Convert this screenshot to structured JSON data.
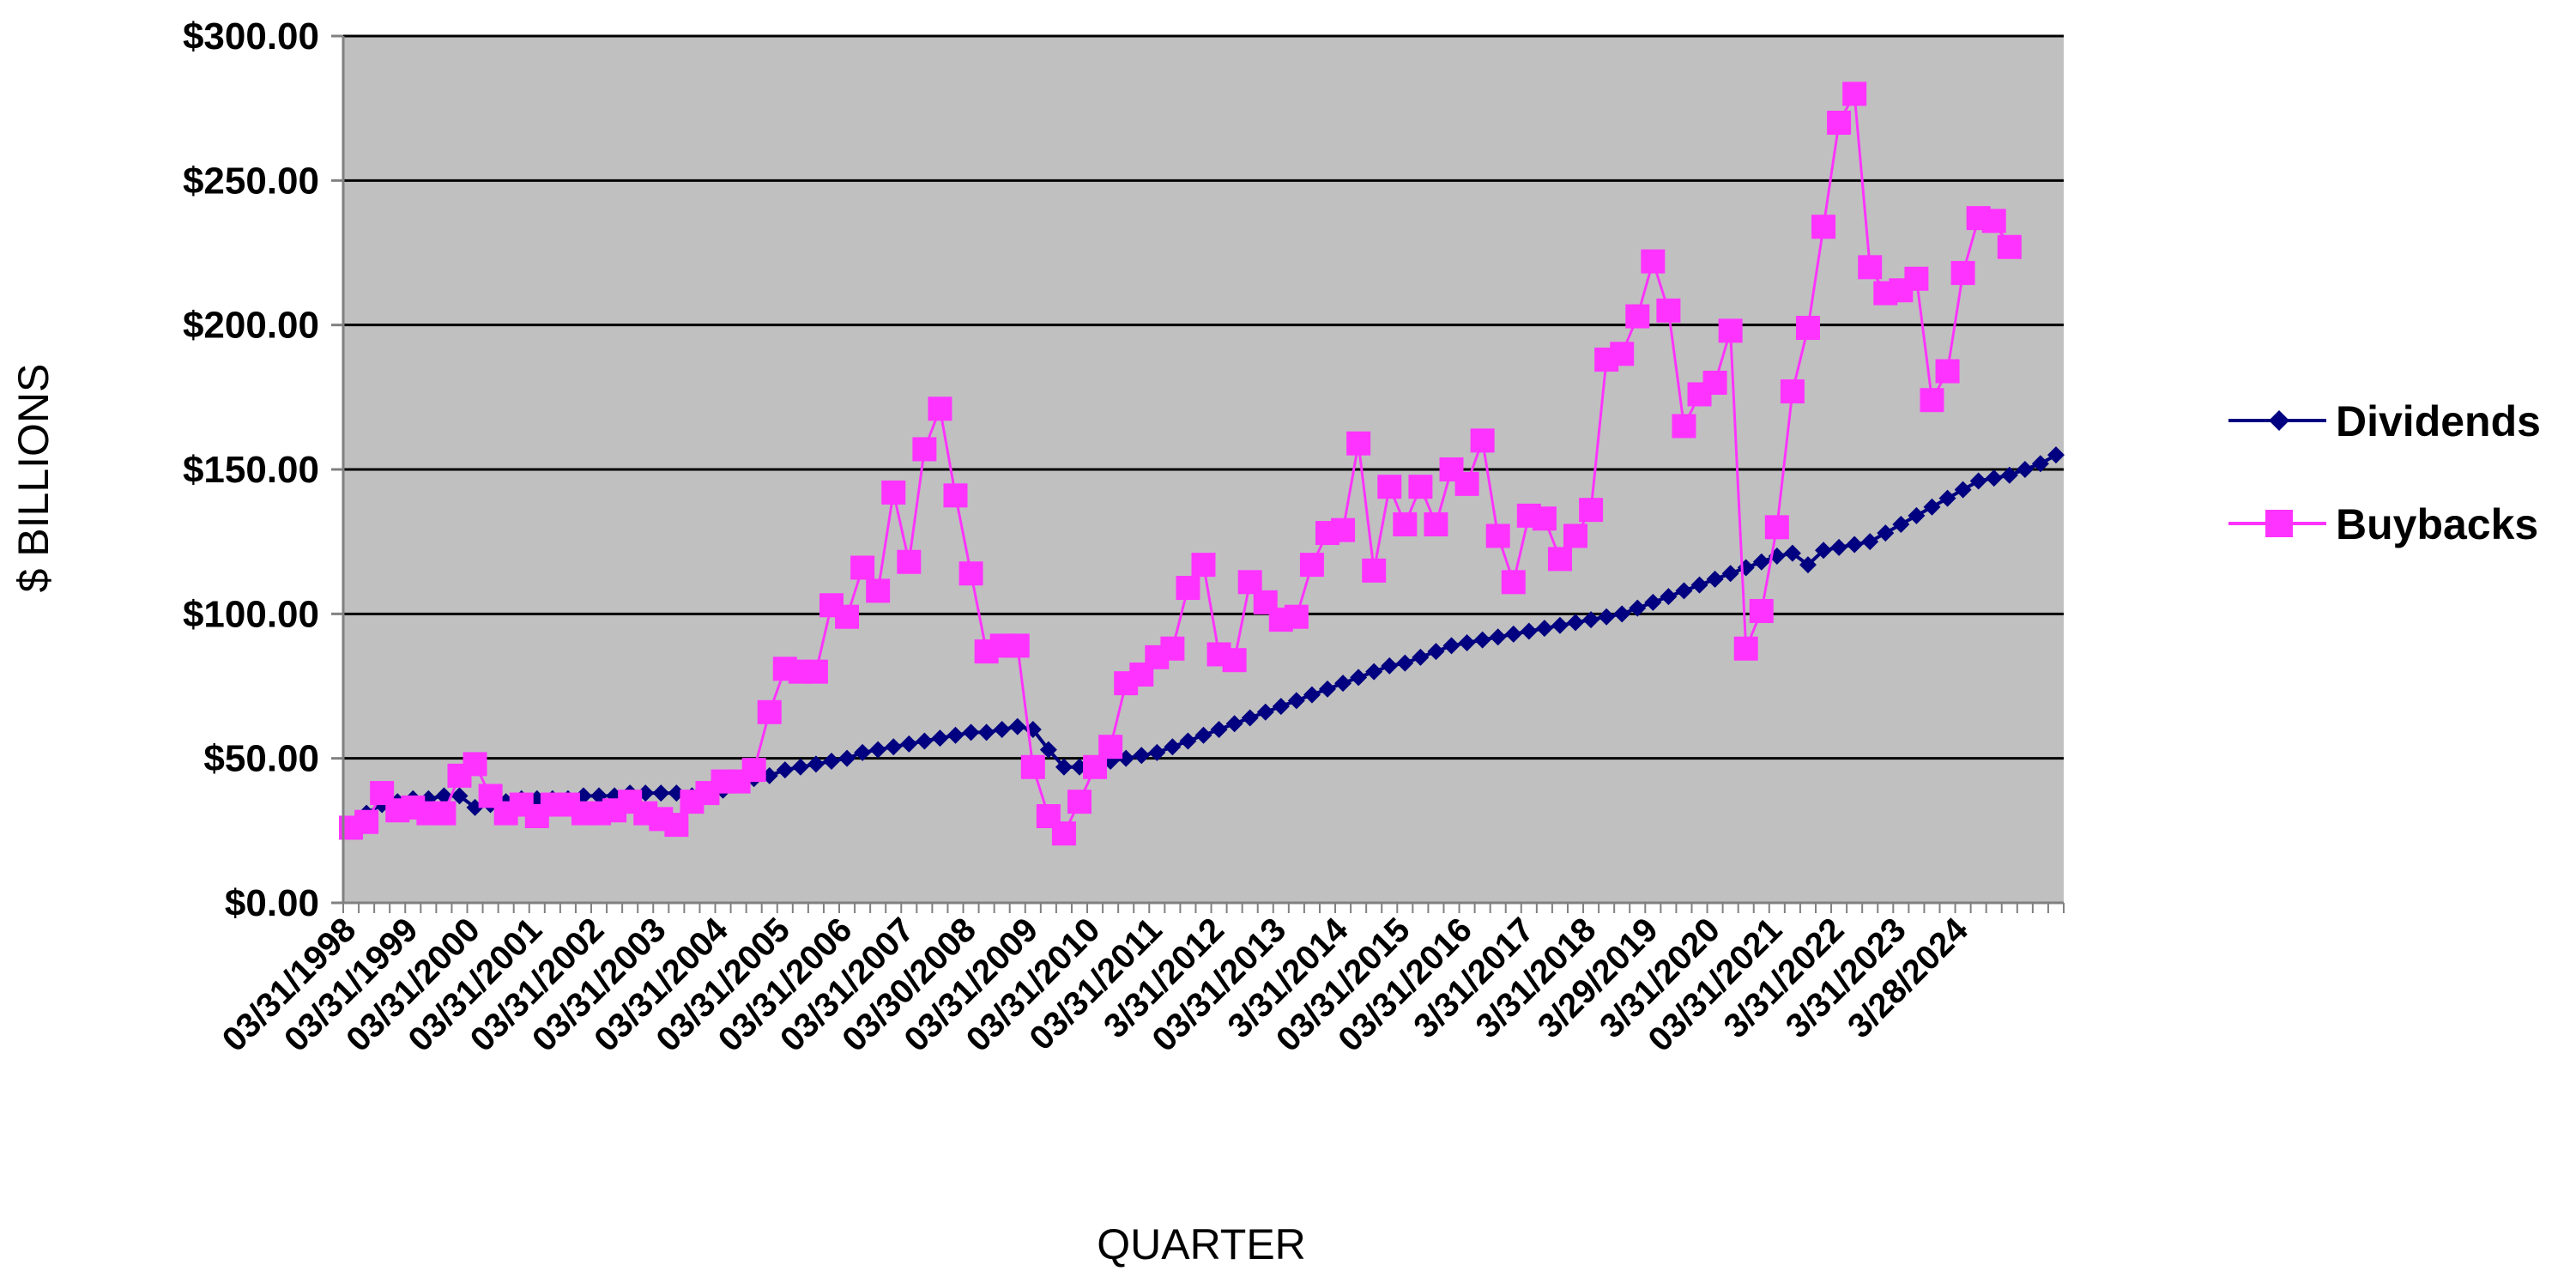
{
  "chart_data": {
    "type": "line",
    "xlabel": "QUARTER",
    "ylabel": "$ BILLIONS",
    "ylim": [
      0,
      300
    ],
    "y_ticks": [
      "$0.00",
      "$50.00",
      "$100.00",
      "$150.00",
      "$200.00",
      "$250.00",
      "$300.00"
    ],
    "grid": true,
    "legend": "right",
    "plot_background": "#c0c0c0",
    "x_tick_labels": [
      {
        "label": "03/31/1998",
        "index": 0
      },
      {
        "label": "03/31/1999",
        "index": 4
      },
      {
        "label": "03/31/2000",
        "index": 8
      },
      {
        "label": "03/31/2001",
        "index": 12
      },
      {
        "label": "03/31/2002",
        "index": 16
      },
      {
        "label": "03/31/2003",
        "index": 20
      },
      {
        "label": "03/31/2004",
        "index": 24
      },
      {
        "label": "03/31/2005",
        "index": 28
      },
      {
        "label": "03/31/2006",
        "index": 32
      },
      {
        "label": "03/31/2007",
        "index": 36
      },
      {
        "label": "03/30/2008",
        "index": 40
      },
      {
        "label": "03/31/2009",
        "index": 44
      },
      {
        "label": "03/31/2010",
        "index": 48
      },
      {
        "label": "03/31/2011",
        "index": 52
      },
      {
        "label": "3/31/2012",
        "index": 56
      },
      {
        "label": "03/31/2013",
        "index": 60
      },
      {
        "label": "3/31/2014",
        "index": 64
      },
      {
        "label": "03/31/2015",
        "index": 68
      },
      {
        "label": "03/31/2016",
        "index": 72
      },
      {
        "label": "3/31/2017",
        "index": 76
      },
      {
        "label": "3/31/2018",
        "index": 80
      },
      {
        "label": "3/29/2019",
        "index": 84
      },
      {
        "label": "3/31/2020",
        "index": 88
      },
      {
        "label": "03/31/2021",
        "index": 92
      },
      {
        "label": "3/31/2022",
        "index": 96
      },
      {
        "label": "3/31/2023",
        "index": 100
      },
      {
        "label": "3/28/2024",
        "index": 104
      }
    ],
    "series": [
      {
        "name": "Dividends",
        "color": "#000080",
        "marker": "diamond",
        "values": [
          27,
          31,
          34,
          35,
          36,
          36,
          37,
          37,
          33,
          34,
          35,
          36,
          36,
          36,
          36,
          37,
          37,
          37,
          38,
          38,
          38,
          38,
          37,
          38,
          39,
          41,
          43,
          44,
          46,
          47,
          48,
          49,
          50,
          52,
          53,
          54,
          55,
          56,
          57,
          58,
          59,
          59,
          60,
          61,
          60,
          53,
          47,
          47,
          48,
          49,
          50,
          51,
          52,
          54,
          56,
          58,
          60,
          62,
          64,
          66,
          68,
          70,
          72,
          74,
          76,
          78,
          80,
          82,
          83,
          85,
          87,
          89,
          90,
          91,
          92,
          93,
          94,
          95,
          96,
          97,
          98,
          99,
          100,
          102,
          104,
          106,
          108,
          110,
          112,
          114,
          116,
          118,
          120,
          121,
          117,
          122,
          123,
          124,
          125,
          128,
          131,
          134,
          137,
          140,
          143,
          146,
          147,
          148,
          150,
          152,
          155
        ]
      },
      {
        "name": "Buybacks",
        "color": "#ff33ff",
        "marker": "square",
        "values": [
          26,
          28,
          38,
          32,
          33,
          31,
          31,
          44,
          48,
          37,
          31,
          34,
          30,
          34,
          34,
          31,
          31,
          32,
          35,
          31,
          29,
          27,
          35,
          38,
          42,
          42,
          46,
          66,
          81,
          80,
          80,
          103,
          99,
          116,
          108,
          142,
          118,
          157,
          171,
          141,
          114,
          87,
          89,
          89,
          47,
          30,
          24,
          35,
          47,
          54,
          76,
          79,
          85,
          88,
          109,
          117,
          86,
          84,
          111,
          104,
          98,
          99,
          117,
          128,
          129,
          159,
          115,
          144,
          131,
          144,
          131,
          150,
          145,
          160,
          127,
          111,
          134,
          133,
          119,
          127,
          136,
          188,
          190,
          203,
          222,
          205,
          165,
          176,
          180,
          198,
          88,
          101,
          130,
          177,
          199,
          234,
          270,
          280,
          220,
          211,
          212,
          216,
          174,
          184,
          218,
          237,
          236,
          227
        ]
      }
    ]
  }
}
